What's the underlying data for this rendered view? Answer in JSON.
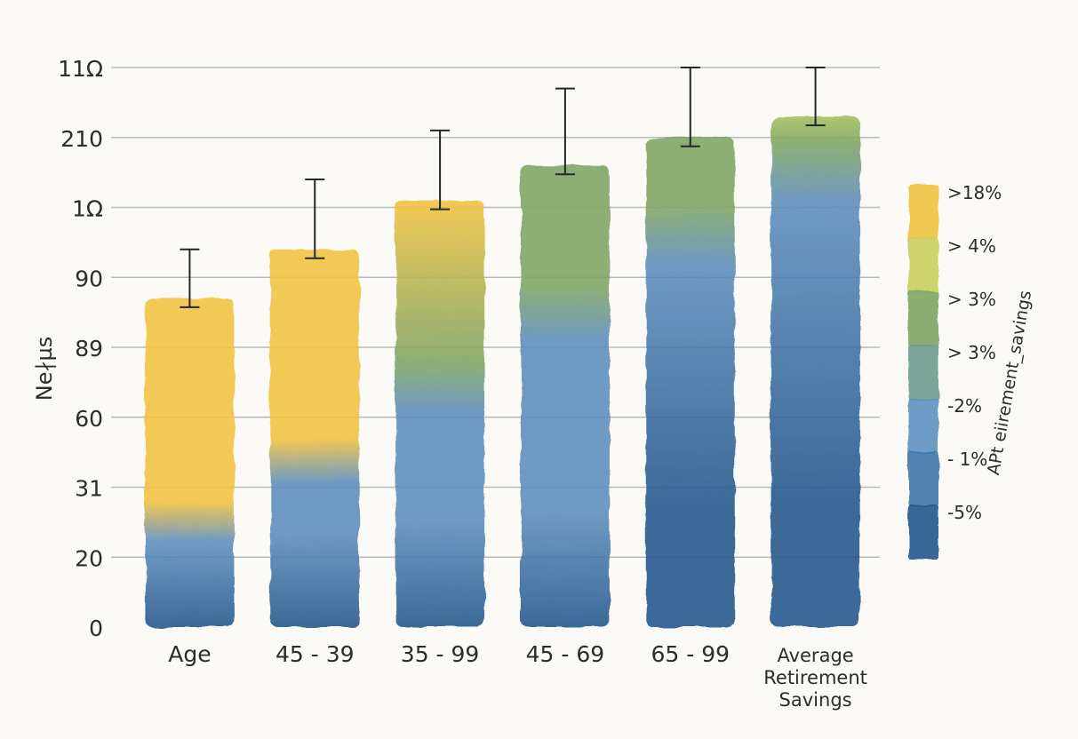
{
  "chart_data": {
    "type": "bar",
    "ylabel": "Ne∤µs",
    "y_ticks": [
      "0",
      "20",
      "31",
      "60",
      "89",
      "90",
      "1Ω",
      "210",
      "11Ω"
    ],
    "categories": [
      "Age",
      "45 - 39",
      "35 - 99",
      "45 - 69",
      "65 - 99",
      "Average Retirement Savings"
    ],
    "series": [
      {
        "values": [
          47,
          54,
          61,
          66,
          70,
          73
        ],
        "error": [
          7,
          10,
          10,
          11,
          10,
          7
        ]
      }
    ],
    "legend_title": "APt eiirement_savings",
    "legend": [
      {
        "label": ">18%",
        "color": "#f1c23f"
      },
      {
        "label": "> 4%",
        "color": "#c9cf5e"
      },
      {
        "label": "> 3%",
        "color": "#7fa563"
      },
      {
        "label": "> 3%",
        "color": "#6e9c8e"
      },
      {
        "label": "-2%",
        "color": "#5e92c2"
      },
      {
        "label": "- 1%",
        "color": "#3f77ab"
      },
      {
        "label": "-5%",
        "color": "#24598f"
      }
    ],
    "legend_position": "right",
    "grid": true,
    "colors": {
      "yellow": "#f1c23f",
      "green": "#7fa563",
      "blue": "#5c8dbd",
      "dark_blue": "#23568c"
    }
  }
}
